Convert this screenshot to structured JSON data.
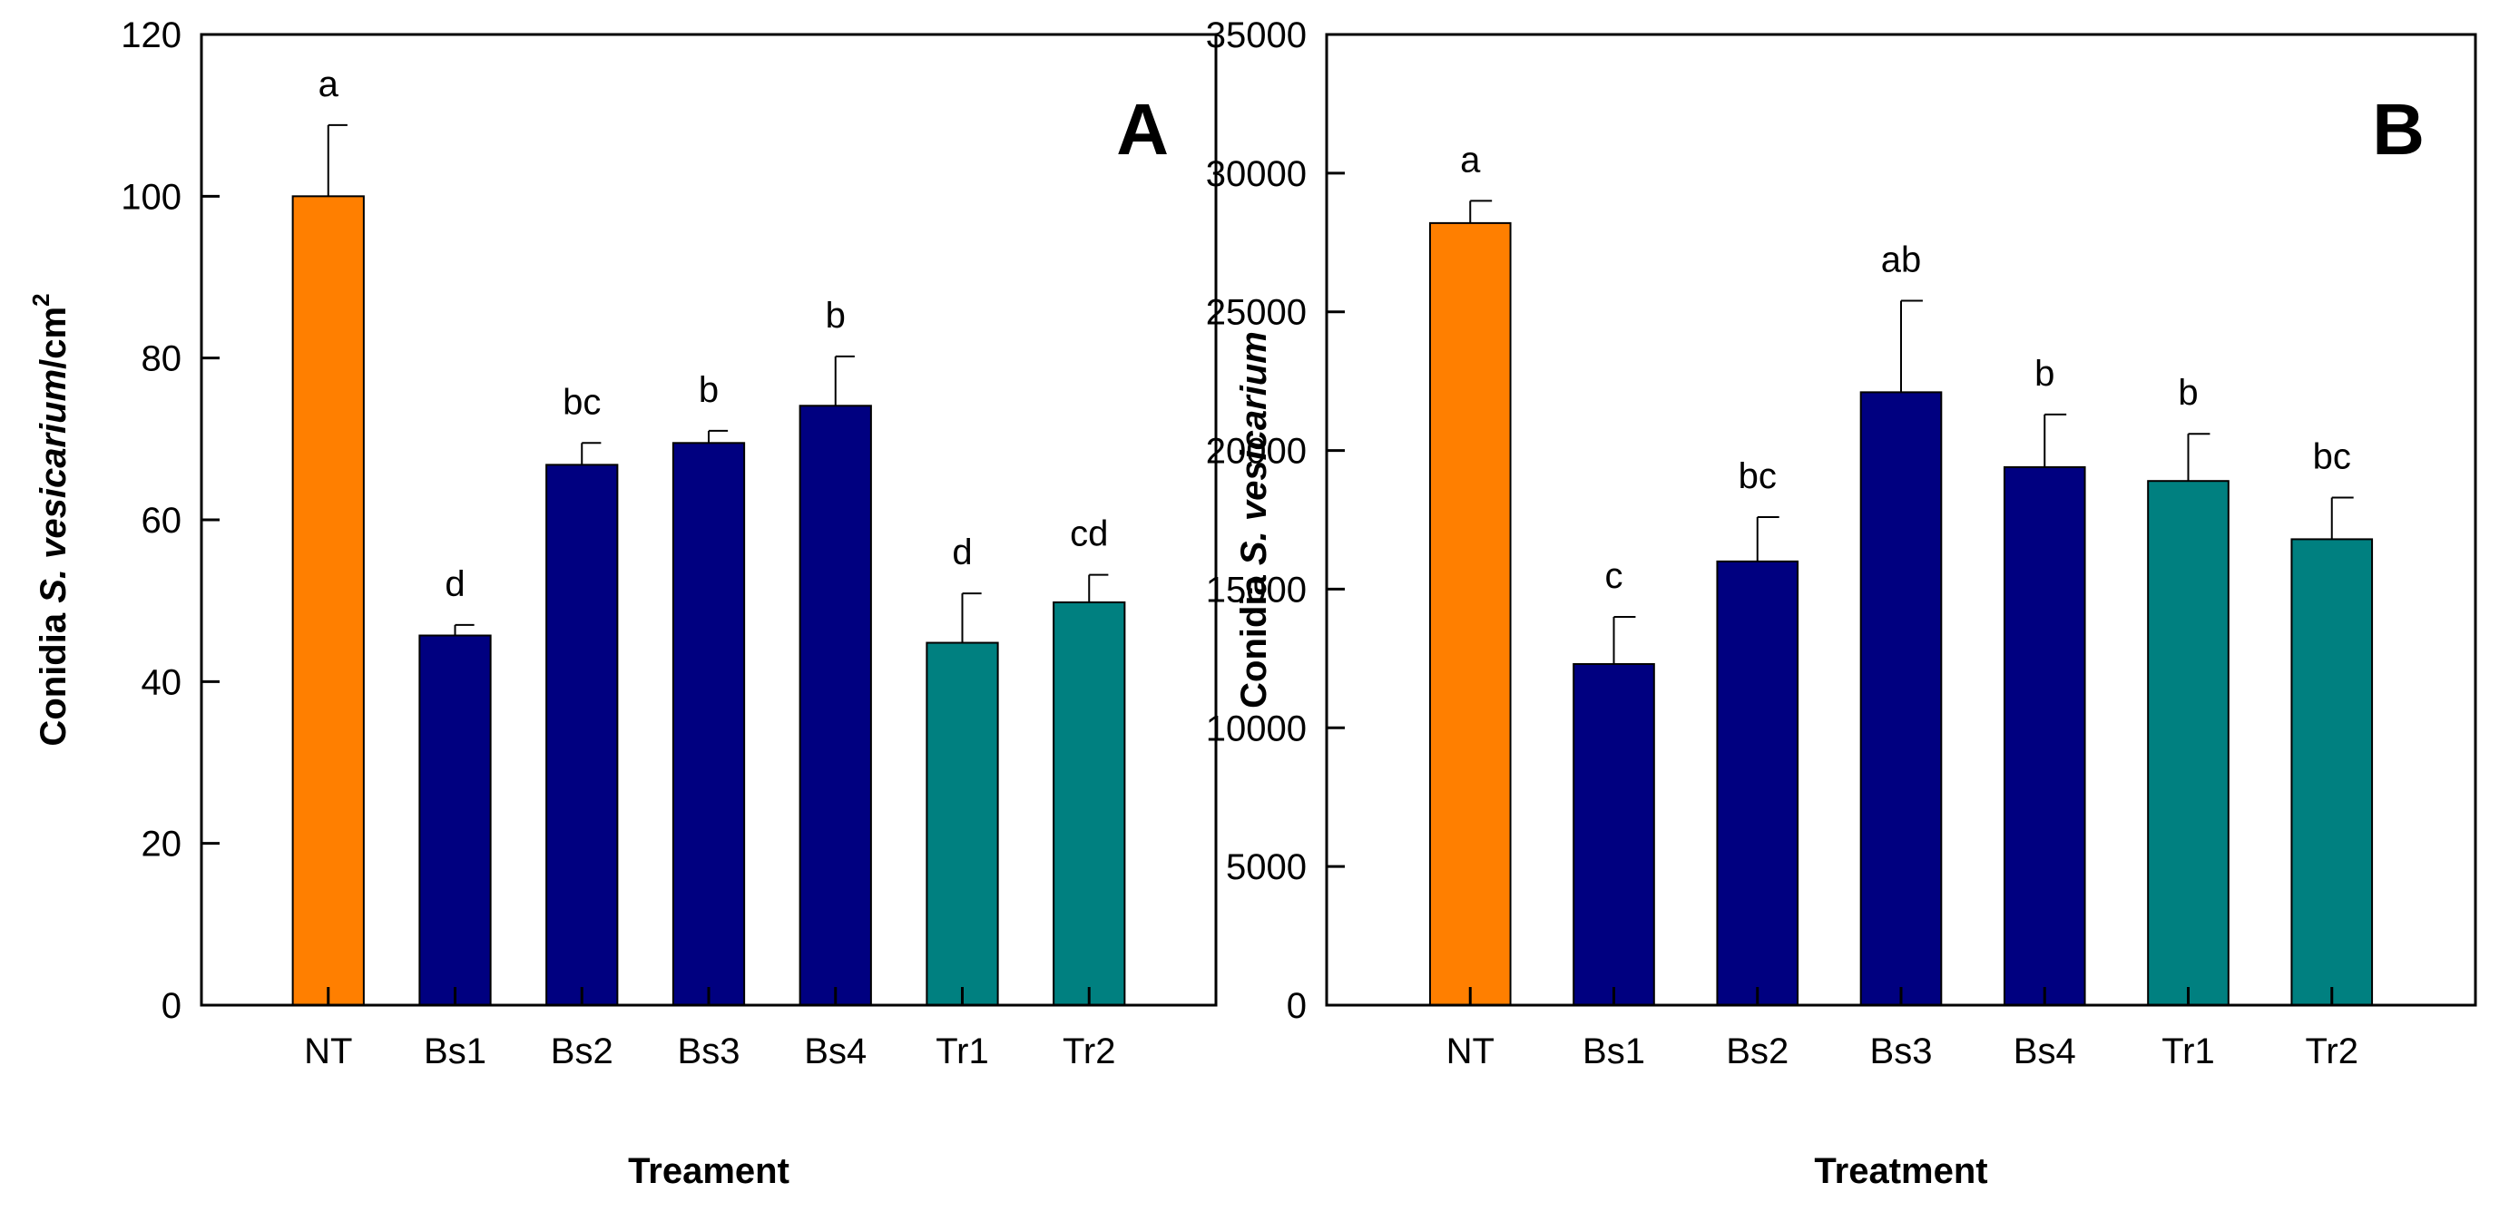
{
  "colors": {
    "control": "#FF7F00",
    "bacillus": "#000080",
    "trichoderma": "#008080"
  },
  "chart_data": [
    {
      "type": "bar",
      "panel_label": "A",
      "categories": [
        "NT",
        "Bs1",
        "Bs2",
        "Bs3",
        "Bs4",
        "Tr1",
        "Tr2"
      ],
      "values": [
        100,
        45.7,
        66.8,
        69.5,
        74.1,
        44.8,
        49.8
      ],
      "errors": [
        8.8,
        1.3,
        2.7,
        1.5,
        6.1,
        6.1,
        3.4
      ],
      "letters": [
        "a",
        "d",
        "bc",
        "b",
        "b",
        "d",
        "cd"
      ],
      "groups": [
        "control",
        "bacillus",
        "bacillus",
        "bacillus",
        "bacillus",
        "trichoderma",
        "trichoderma"
      ],
      "ylim": [
        0,
        120
      ],
      "yticks": [
        0,
        20,
        40,
        60,
        80,
        100,
        120
      ],
      "ytick_labels": [
        "0",
        "20",
        "40",
        "60",
        "80",
        "100",
        "120"
      ],
      "ylabel_prefix": "Conidia ",
      "ylabel_italic": "S. vesicarium",
      "ylabel_suffix": "/cm",
      "ylabel_superscript": "2",
      "xlabel": "Treament"
    },
    {
      "type": "bar",
      "panel_label": "B",
      "categories": [
        "NT",
        "Bs1",
        "Bs2",
        "Bs3",
        "Bs4",
        "Tr1",
        "Tr2"
      ],
      "values": [
        28200,
        12300,
        16000,
        22100,
        19400,
        18900,
        16800
      ],
      "errors": [
        800,
        1700,
        1600,
        3300,
        1900,
        1700,
        1500
      ],
      "letters": [
        "a",
        "c",
        "bc",
        "ab",
        "b",
        "b",
        "bc"
      ],
      "groups": [
        "control",
        "bacillus",
        "bacillus",
        "bacillus",
        "bacillus",
        "trichoderma",
        "trichoderma"
      ],
      "ylim": [
        0,
        35000
      ],
      "yticks": [
        0,
        5000,
        10000,
        15000,
        20000,
        25000,
        30000,
        35000
      ],
      "ytick_labels": [
        "0",
        "5000",
        "10000",
        "15000",
        "20000",
        "25000",
        "30000",
        "35000"
      ],
      "ylabel_prefix": "Conidia ",
      "ylabel_italic": "S. vesicarium",
      "ylabel_suffix": "",
      "ylabel_superscript": "",
      "xlabel": "Treatment"
    }
  ]
}
